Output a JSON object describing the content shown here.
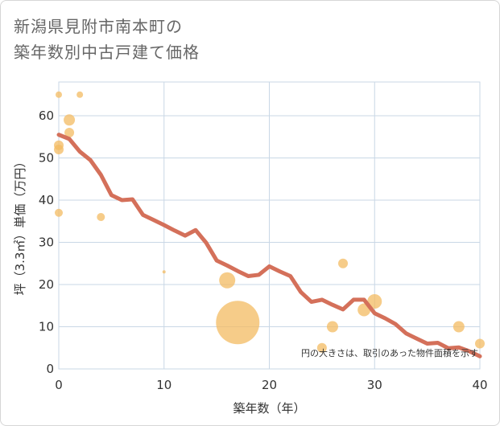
{
  "chart_data": {
    "type": "scatter",
    "title_line1": "新潟県見附市南本町の",
    "title_line2": "築年数別中古戸建て価格",
    "xlabel": "築年数（年）",
    "ylabel": "坪（3.3㎡）単価（万円）",
    "note": "円の大きさは、取引のあった物件面積を示す",
    "xlim": [
      0,
      40
    ],
    "ylim": [
      0,
      68
    ],
    "xticks": [
      0,
      10,
      20,
      30,
      40
    ],
    "yticks": [
      0,
      10,
      20,
      30,
      40,
      50,
      60
    ],
    "xtick_labels": [
      "0",
      "10",
      "20",
      "30",
      "40"
    ],
    "ytick_labels": [
      "0",
      "10",
      "20",
      "30",
      "40",
      "50",
      "60"
    ],
    "grid": true,
    "colors": {
      "bubble": "#f3bb62",
      "line": "#d4705a",
      "grid": "#c9d7e6"
    },
    "points": [
      {
        "x": 0,
        "y": 65,
        "size": 4
      },
      {
        "x": 2,
        "y": 65,
        "size": 4
      },
      {
        "x": 1,
        "y": 59,
        "size": 7
      },
      {
        "x": 1,
        "y": 56,
        "size": 6
      },
      {
        "x": 0,
        "y": 53,
        "size": 6
      },
      {
        "x": 0,
        "y": 52,
        "size": 6
      },
      {
        "x": 0,
        "y": 37,
        "size": 5
      },
      {
        "x": 4,
        "y": 36,
        "size": 5
      },
      {
        "x": 10,
        "y": 23,
        "size": 2
      },
      {
        "x": 16,
        "y": 21,
        "size": 10
      },
      {
        "x": 17,
        "y": 11,
        "size": 27
      },
      {
        "x": 25,
        "y": 5,
        "size": 6
      },
      {
        "x": 26,
        "y": 10,
        "size": 7
      },
      {
        "x": 27,
        "y": 25,
        "size": 6
      },
      {
        "x": 29,
        "y": 14,
        "size": 8
      },
      {
        "x": 30,
        "y": 16,
        "size": 9
      },
      {
        "x": 38,
        "y": 10,
        "size": 7
      },
      {
        "x": 40,
        "y": 6,
        "size": 6
      }
    ],
    "trend": {
      "x": [
        0,
        1,
        2,
        3,
        4,
        5,
        6,
        7,
        8,
        9,
        10,
        11,
        12,
        13,
        14,
        15,
        16,
        17,
        18,
        19,
        20,
        21,
        22,
        23,
        24,
        25,
        26,
        27,
        28,
        29,
        30,
        31,
        32,
        33,
        34,
        35,
        36,
        37,
        38,
        39,
        40
      ],
      "y": [
        55.5,
        54.5,
        51.5,
        49.5,
        46,
        41.2,
        40,
        40.2,
        36.5,
        35.3,
        34.1,
        32.8,
        31.6,
        32.9,
        29.9,
        25.7,
        24.5,
        23.2,
        22,
        22.3,
        24.3,
        23.1,
        22,
        18.2,
        15.9,
        16.4,
        15.2,
        14.1,
        16.4,
        16.4,
        13.2,
        12,
        10.6,
        8.4,
        7.2,
        6,
        6.2,
        4.9,
        5.1,
        4.2,
        3
      ]
    }
  }
}
